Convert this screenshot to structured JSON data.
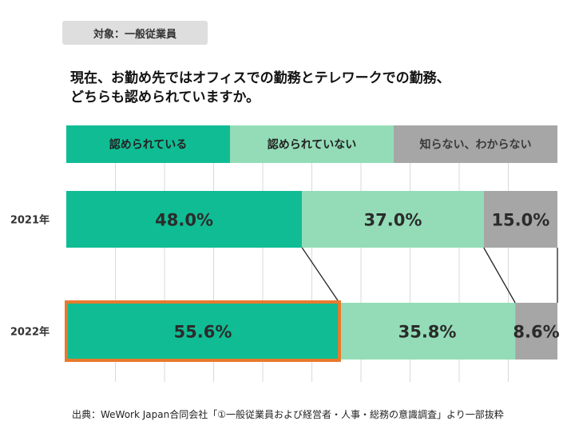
{
  "badge": "対象：一般従業員",
  "question": {
    "line1": "現在、お勤め先ではオフィスでの勤務とテレワークでの勤務、",
    "line2": "どちらも認められていますか。"
  },
  "source": "出典：WeWork Japan合同会社「①一般従業員および経営者・人事・総務の意識調査」より一部抜粋",
  "colors": {
    "dark_green": "#10bc94",
    "light_green": "#93dcb7",
    "gray": "#a6a6a6",
    "highlight": "#e77a2c",
    "grid": "#d9d9d9"
  },
  "chart_data": {
    "type": "stacked-bar",
    "orientation": "horizontal",
    "categories": [
      "2021年",
      "2022年"
    ],
    "series": [
      {
        "name": "認められている",
        "values": [
          48.0,
          55.6
        ],
        "labels": [
          "48.0%",
          "55.6%"
        ]
      },
      {
        "name": "認められていない",
        "values": [
          37.0,
          35.8
        ],
        "labels": [
          "37.0%",
          "35.8%"
        ]
      },
      {
        "name": "知らない、わからない",
        "values": [
          15.0,
          8.6
        ],
        "labels": [
          "15.0%",
          "8.6%"
        ]
      }
    ],
    "xlim": [
      0,
      100
    ],
    "highlighted": {
      "category": "2022年",
      "series": "認められている"
    },
    "legend_position": "top",
    "grid": true
  }
}
